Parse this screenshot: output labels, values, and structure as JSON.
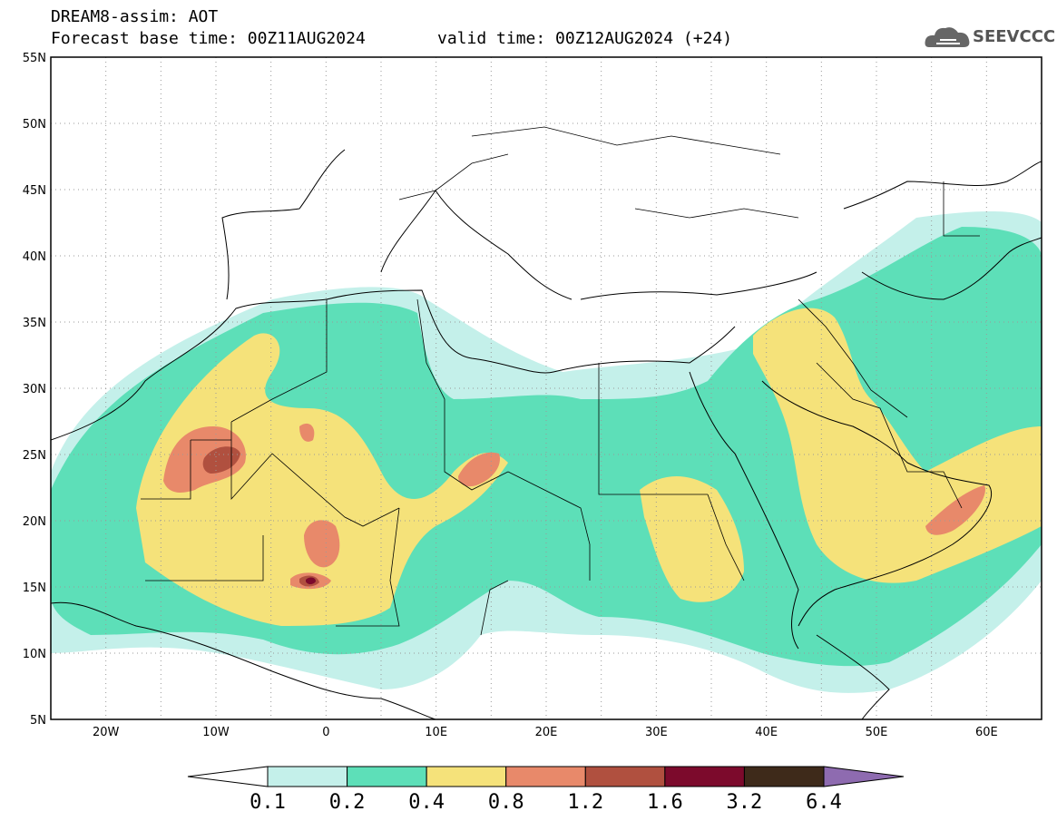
{
  "title": {
    "line1": "DREAM8-assim: AOT",
    "line2": "Forecast base time: 00Z11AUG2024",
    "valid": "valid time: 00Z12AUG2024 (+24)"
  },
  "logo": {
    "text": "SEEVCCC",
    "icon": "cloud-icon"
  },
  "map": {
    "lat_ticks": [
      "55N",
      "50N",
      "45N",
      "40N",
      "35N",
      "30N",
      "25N",
      "20N",
      "15N",
      "10N",
      "5N"
    ],
    "lon_ticks": [
      "20W",
      "10W",
      "0",
      "10E",
      "20E",
      "30E",
      "40E",
      "50E",
      "60E"
    ],
    "lon_range": [
      -25,
      65
    ],
    "lat_range": [
      5,
      55
    ]
  },
  "colorbar": {
    "labels": [
      "0.1",
      "0.2",
      "0.4",
      "0.8",
      "1.2",
      "1.6",
      "3.2",
      "6.4"
    ],
    "colors": [
      "#ffffff",
      "#c4f0ea",
      "#5ddfb8",
      "#f5e27a",
      "#e8896a",
      "#b0503f",
      "#7c0a2c",
      "#3e2a1a",
      "#8e6bb0"
    ]
  }
}
